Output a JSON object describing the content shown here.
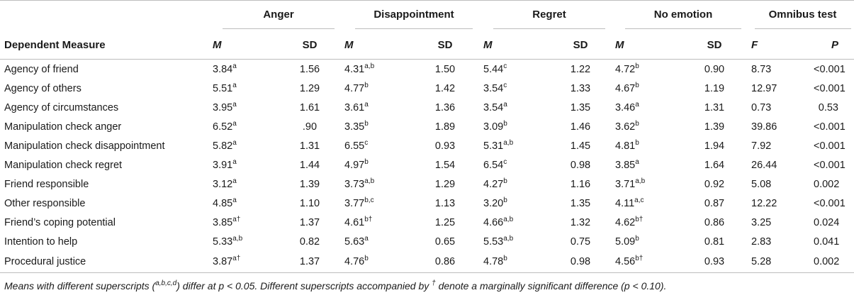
{
  "header": {
    "groups": [
      "Anger",
      "Disappointment",
      "Regret",
      "No emotion",
      "Omnibus test"
    ],
    "first_col": "Dependent Measure",
    "sub": [
      "M",
      "SD",
      "M",
      "SD",
      "M",
      "SD",
      "M",
      "SD",
      "F",
      "P"
    ]
  },
  "rows": [
    {
      "label": "Agency of friend",
      "cells": [
        [
          "3.84",
          "a"
        ],
        [
          "1.56",
          ""
        ],
        [
          "4.31",
          "a,b"
        ],
        [
          "1.50",
          ""
        ],
        [
          "5.44",
          "c"
        ],
        [
          "1.22",
          ""
        ],
        [
          "4.72",
          "b"
        ],
        [
          "0.90",
          ""
        ],
        [
          "8.73",
          ""
        ],
        [
          "<0.001",
          ""
        ]
      ]
    },
    {
      "label": "Agency of others",
      "cells": [
        [
          "5.51",
          "a"
        ],
        [
          "1.29",
          ""
        ],
        [
          "4.77",
          "b"
        ],
        [
          "1.42",
          ""
        ],
        [
          "3.54",
          "c"
        ],
        [
          "1.33",
          ""
        ],
        [
          "4.67",
          "b"
        ],
        [
          "1.19",
          ""
        ],
        [
          "12.97",
          ""
        ],
        [
          "<0.001",
          ""
        ]
      ]
    },
    {
      "label": "Agency of circumstances",
      "cells": [
        [
          "3.95",
          "a"
        ],
        [
          "1.61",
          ""
        ],
        [
          "3.61",
          "a"
        ],
        [
          "1.36",
          ""
        ],
        [
          "3.54",
          "a"
        ],
        [
          "1.35",
          ""
        ],
        [
          "3.46",
          "a"
        ],
        [
          "1.31",
          ""
        ],
        [
          "0.73",
          ""
        ],
        [
          "0.53",
          ""
        ]
      ]
    },
    {
      "label": "Manipulation check anger",
      "cells": [
        [
          "6.52",
          "a"
        ],
        [
          ".90",
          ""
        ],
        [
          "3.35",
          "b"
        ],
        [
          "1.89",
          ""
        ],
        [
          "3.09",
          "b"
        ],
        [
          "1.46",
          ""
        ],
        [
          "3.62",
          "b"
        ],
        [
          "1.39",
          ""
        ],
        [
          "39.86",
          ""
        ],
        [
          "<0.001",
          ""
        ]
      ]
    },
    {
      "label": "Manipulation check disappointment",
      "cells": [
        [
          "5.82",
          "a"
        ],
        [
          "1.31",
          ""
        ],
        [
          "6.55",
          "c"
        ],
        [
          "0.93",
          ""
        ],
        [
          "5.31",
          "a,b"
        ],
        [
          "1.45",
          ""
        ],
        [
          "4.81",
          "b"
        ],
        [
          "1.94",
          ""
        ],
        [
          "7.92",
          ""
        ],
        [
          "<0.001",
          ""
        ]
      ]
    },
    {
      "label": "Manipulation check regret",
      "cells": [
        [
          "3.91",
          "a"
        ],
        [
          "1.44",
          ""
        ],
        [
          "4.97",
          "b"
        ],
        [
          "1.54",
          ""
        ],
        [
          "6.54",
          "c"
        ],
        [
          "0.98",
          ""
        ],
        [
          "3.85",
          "a"
        ],
        [
          "1.64",
          ""
        ],
        [
          "26.44",
          ""
        ],
        [
          "<0.001",
          ""
        ]
      ]
    },
    {
      "label": "Friend responsible",
      "cells": [
        [
          "3.12",
          "a"
        ],
        [
          "1.39",
          ""
        ],
        [
          "3.73",
          "a,b"
        ],
        [
          "1.29",
          ""
        ],
        [
          "4.27",
          "b"
        ],
        [
          "1.16",
          ""
        ],
        [
          "3.71",
          "a,b"
        ],
        [
          "0.92",
          ""
        ],
        [
          "5.08",
          ""
        ],
        [
          "0.002",
          ""
        ]
      ]
    },
    {
      "label": "Other responsible",
      "cells": [
        [
          "4.85",
          "a"
        ],
        [
          "1.10",
          ""
        ],
        [
          "3.77",
          "b,c"
        ],
        [
          "1.13",
          ""
        ],
        [
          "3.20",
          "b"
        ],
        [
          "1.35",
          ""
        ],
        [
          "4.11",
          "a,c"
        ],
        [
          "0.87",
          ""
        ],
        [
          "12.22",
          ""
        ],
        [
          "<0.001",
          ""
        ]
      ]
    },
    {
      "label": "Friend’s coping potential",
      "cells": [
        [
          "3.85",
          "a†"
        ],
        [
          "1.37",
          ""
        ],
        [
          "4.61",
          "b†"
        ],
        [
          "1.25",
          ""
        ],
        [
          "4.66",
          "a,b"
        ],
        [
          "1.32",
          ""
        ],
        [
          "4.62",
          "b†"
        ],
        [
          "0.86",
          ""
        ],
        [
          "3.25",
          ""
        ],
        [
          "0.024",
          ""
        ]
      ]
    },
    {
      "label": "Intention to help",
      "cells": [
        [
          "5.33",
          "a,b"
        ],
        [
          "0.82",
          ""
        ],
        [
          "5.63",
          "a"
        ],
        [
          "0.65",
          ""
        ],
        [
          "5.53",
          "a,b"
        ],
        [
          "0.75",
          ""
        ],
        [
          "5.09",
          "b"
        ],
        [
          "0.81",
          ""
        ],
        [
          "2.83",
          ""
        ],
        [
          "0.041",
          ""
        ]
      ]
    },
    {
      "label": "Procedural justice",
      "cells": [
        [
          "3.87",
          "a†"
        ],
        [
          "1.37",
          ""
        ],
        [
          "4.76",
          "b"
        ],
        [
          "0.86",
          ""
        ],
        [
          "4.78",
          "b"
        ],
        [
          "0.98",
          ""
        ],
        [
          "4.56",
          "b†"
        ],
        [
          "0.93",
          ""
        ],
        [
          "5.28",
          ""
        ],
        [
          "0.002",
          ""
        ]
      ]
    }
  ],
  "footnote": {
    "part1": "Means with different superscripts (",
    "sup1": "a,b,c,d",
    "part2": ") differ at p < 0.05. Different superscripts accompanied by ",
    "sup2": "†",
    "part3": " denote a marginally significant difference (p < 0.10)."
  }
}
